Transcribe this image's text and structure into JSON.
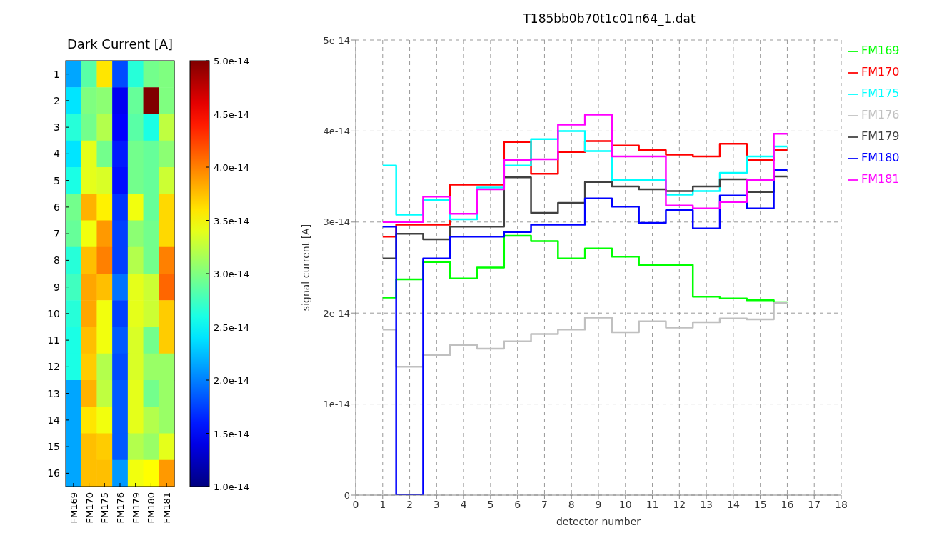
{
  "chart_data": [
    {
      "type": "heatmap",
      "title": "Dark Current  [A]",
      "categories": [
        "FM169",
        "FM170",
        "FM175",
        "FM176",
        "FM179",
        "FM180",
        "FM181"
      ],
      "y_categories": [
        "1",
        "2",
        "3",
        "4",
        "5",
        "6",
        "7",
        "8",
        "9",
        "10",
        "11",
        "12",
        "13",
        "14",
        "15",
        "16"
      ],
      "cells": [
        [
          2.15e-14,
          2.85e-14,
          3.6e-14,
          1.8e-14,
          2.65e-14,
          2.95e-14,
          3e-14
        ],
        [
          2.4e-14,
          3e-14,
          3.05e-14,
          1.45e-14,
          2.9e-14,
          5e-14,
          3e-14
        ],
        [
          2.65e-14,
          2.95e-14,
          3.2e-14,
          1.5e-14,
          2.85e-14,
          2.6e-14,
          3.25e-14
        ],
        [
          2.4e-14,
          3.4e-14,
          2.95e-14,
          1.6e-14,
          2.95e-14,
          2.9e-14,
          3.05e-14
        ],
        [
          2.6e-14,
          3.4e-14,
          3.35e-14,
          1.55e-14,
          2.95e-14,
          2.9e-14,
          3.3e-14
        ],
        [
          2.95e-14,
          3.8e-14,
          3.55e-14,
          1.7e-14,
          3.45e-14,
          2.9e-14,
          3.65e-14
        ],
        [
          2.9e-14,
          3.45e-14,
          3.9e-14,
          1.75e-14,
          3.05e-14,
          2.95e-14,
          3.65e-14
        ],
        [
          2.65e-14,
          3.75e-14,
          4e-14,
          1.75e-14,
          3.2e-14,
          2.95e-14,
          4e-14
        ],
        [
          2.75e-14,
          3.85e-14,
          3.75e-14,
          1.95e-14,
          3.4e-14,
          3.3e-14,
          4.1e-14
        ],
        [
          2.65e-14,
          3.85e-14,
          3.45e-14,
          1.75e-14,
          3.4e-14,
          3.3e-14,
          3.7e-14
        ],
        [
          2.6e-14,
          3.75e-14,
          3.45e-14,
          1.85e-14,
          3.35e-14,
          2.95e-14,
          3.7e-14
        ],
        [
          2.6e-14,
          3.7e-14,
          3.2e-14,
          1.8e-14,
          3.35e-14,
          3.1e-14,
          3.1e-14
        ],
        [
          2.15e-14,
          3.8e-14,
          3.25e-14,
          1.85e-14,
          3.4e-14,
          2.95e-14,
          3.1e-14
        ],
        [
          2.15e-14,
          3.6e-14,
          3.45e-14,
          1.85e-14,
          3.4e-14,
          3.2e-14,
          3.1e-14
        ],
        [
          2.15e-14,
          3.75e-14,
          3.7e-14,
          1.85e-14,
          3.2e-14,
          3.1e-14,
          3.4e-14
        ],
        [
          2.15e-14,
          3.75e-14,
          3.75e-14,
          2.1e-14,
          3.45e-14,
          3.5e-14,
          3.9e-14
        ]
      ],
      "clim": [
        1e-14,
        5e-14
      ],
      "cticks": [
        {
          "value": 1e-14,
          "label": "1.0e-14"
        },
        {
          "value": 1.5e-14,
          "label": "1.5e-14"
        },
        {
          "value": 2e-14,
          "label": "2.0e-14"
        },
        {
          "value": 2.5e-14,
          "label": "2.5e-14"
        },
        {
          "value": 3e-14,
          "label": "3.0e-14"
        },
        {
          "value": 3.5e-14,
          "label": "3.5e-14"
        },
        {
          "value": 4e-14,
          "label": "4.0e-14"
        },
        {
          "value": 4.5e-14,
          "label": "4.5e-14"
        },
        {
          "value": 5e-14,
          "label": "5.0e-14"
        }
      ]
    },
    {
      "type": "step",
      "title": "T185bb0b70t1c01n64_1.dat",
      "xlabel": "detector number",
      "ylabel": "signal current [A]",
      "x": [
        1,
        2,
        3,
        4,
        5,
        6,
        7,
        8,
        9,
        10,
        11,
        12,
        13,
        14,
        15,
        16
      ],
      "series": [
        {
          "name": "FM169",
          "color": "#00ff00",
          "values": [
            2.17e-14,
            2.37e-14,
            2.56e-14,
            2.38e-14,
            2.5e-14,
            2.85e-14,
            2.79e-14,
            2.6e-14,
            2.71e-14,
            2.62e-14,
            2.53e-14,
            2.53e-14,
            2.18e-14,
            2.16e-14,
            2.14e-14,
            2.12e-14
          ]
        },
        {
          "name": "FM170",
          "color": "#ff0000",
          "values": [
            2.84e-14,
            2.97e-14,
            2.97e-14,
            3.41e-14,
            3.41e-14,
            3.88e-14,
            3.53e-14,
            3.77e-14,
            3.89e-14,
            3.84e-14,
            3.79e-14,
            3.74e-14,
            3.72e-14,
            3.86e-14,
            3.68e-14,
            3.79e-14
          ]
        },
        {
          "name": "FM175",
          "color": "#00ffff",
          "values": [
            3.62e-14,
            3.08e-14,
            3.24e-14,
            3.03e-14,
            3.38e-14,
            3.62e-14,
            3.91e-14,
            4e-14,
            3.78e-14,
            3.46e-14,
            3.46e-14,
            3.3e-14,
            3.34e-14,
            3.54e-14,
            3.72e-14,
            3.83e-14
          ]
        },
        {
          "name": "FM176",
          "color": "#c0c0c0",
          "values": [
            1.82e-14,
            1.41e-14,
            1.54e-14,
            1.65e-14,
            1.61e-14,
            1.69e-14,
            1.77e-14,
            1.82e-14,
            1.95e-14,
            1.79e-14,
            1.91e-14,
            1.84e-14,
            1.9e-14,
            1.94e-14,
            1.93e-14,
            2.11e-14
          ]
        },
        {
          "name": "FM179",
          "color": "#404040",
          "values": [
            2.6e-14,
            2.87e-14,
            2.81e-14,
            2.95e-14,
            2.95e-14,
            3.49e-14,
            3.1e-14,
            3.21e-14,
            3.44e-14,
            3.39e-14,
            3.36e-14,
            3.34e-14,
            3.39e-14,
            3.47e-14,
            3.33e-14,
            3.5e-14
          ]
        },
        {
          "name": "FM180",
          "color": "#0000ff",
          "values": [
            2.95e-14,
            0,
            2.6e-14,
            2.84e-14,
            2.84e-14,
            2.89e-14,
            2.97e-14,
            2.97e-14,
            3.26e-14,
            3.17e-14,
            2.99e-14,
            3.13e-14,
            2.93e-14,
            3.29e-14,
            3.15e-14,
            3.57e-14
          ]
        },
        {
          "name": "FM181",
          "color": "#ff00ff",
          "values": [
            3e-14,
            3e-14,
            3.28e-14,
            3.09e-14,
            3.36e-14,
            3.68e-14,
            3.69e-14,
            4.07e-14,
            4.18e-14,
            3.72e-14,
            3.72e-14,
            3.18e-14,
            3.15e-14,
            3.22e-14,
            3.46e-14,
            3.97e-14
          ]
        }
      ],
      "xlim": [
        0,
        18
      ],
      "xticks": [
        0,
        1,
        2,
        3,
        4,
        5,
        6,
        7,
        8,
        9,
        10,
        11,
        12,
        13,
        14,
        15,
        16,
        17,
        18
      ],
      "ylim": [
        0,
        5e-14
      ],
      "yticks": [
        0,
        {
          "value": 1e-14,
          "label": "1e-14"
        },
        {
          "value": 2e-14,
          "label": "2e-14"
        },
        {
          "value": 3e-14,
          "label": "3e-14"
        },
        {
          "value": 4e-14,
          "label": "4e-14"
        },
        {
          "value": 5e-14,
          "label": "5e-14"
        }
      ],
      "grid": true,
      "legend": "right"
    }
  ]
}
